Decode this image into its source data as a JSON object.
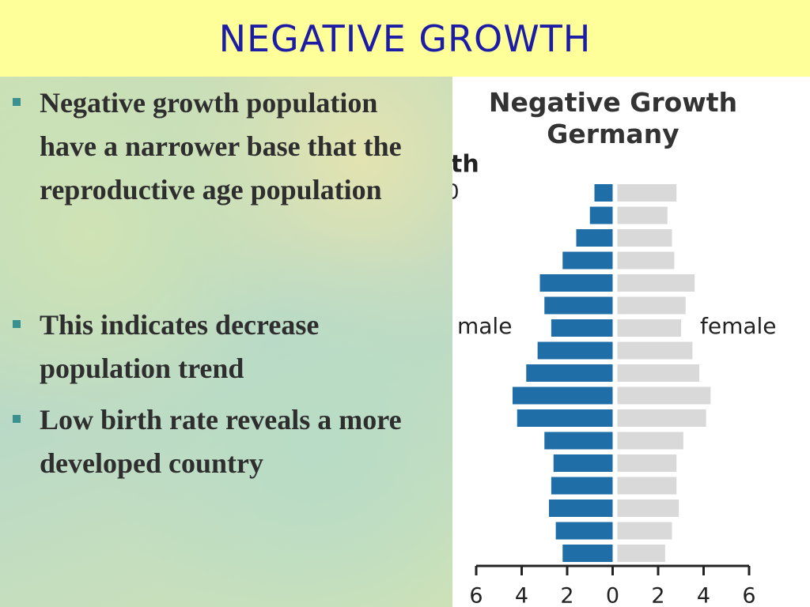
{
  "slide_title": "NEGATIVE GROWTH",
  "bullets": [
    "Negative growth population have a narrower base that the reproductive age population",
    "This indicates decrease population trend",
    "Low birth rate reveals a more developed country"
  ],
  "chart_data": {
    "type": "pyramid",
    "title": "Negative Growth Germany",
    "fragments": [
      "th",
      "0"
    ],
    "categories": [
      null,
      null,
      null,
      null,
      null,
      null,
      null,
      null,
      null,
      null,
      null,
      null,
      null,
      null,
      null,
      null,
      null
    ],
    "series": [
      {
        "name": "male",
        "color": "#1f6ea7",
        "side": "left",
        "values": [
          0.8,
          1.0,
          1.6,
          2.2,
          3.2,
          3.0,
          2.7,
          3.3,
          3.8,
          4.4,
          4.2,
          3.0,
          2.6,
          2.7,
          2.8,
          2.5,
          2.2
        ]
      },
      {
        "name": "female",
        "color": "#d9d9d9",
        "side": "right",
        "values": [
          2.6,
          2.2,
          2.4,
          2.5,
          3.4,
          3.0,
          2.8,
          3.3,
          3.6,
          4.1,
          3.9,
          2.9,
          2.6,
          2.6,
          2.7,
          2.4,
          2.1
        ]
      }
    ],
    "xlim": [
      -6,
      6
    ],
    "xticks": [
      {
        "value": -6,
        "label": "6"
      },
      {
        "value": -4,
        "label": "4"
      },
      {
        "value": -2,
        "label": "2"
      },
      0,
      2,
      4,
      6
    ]
  }
}
